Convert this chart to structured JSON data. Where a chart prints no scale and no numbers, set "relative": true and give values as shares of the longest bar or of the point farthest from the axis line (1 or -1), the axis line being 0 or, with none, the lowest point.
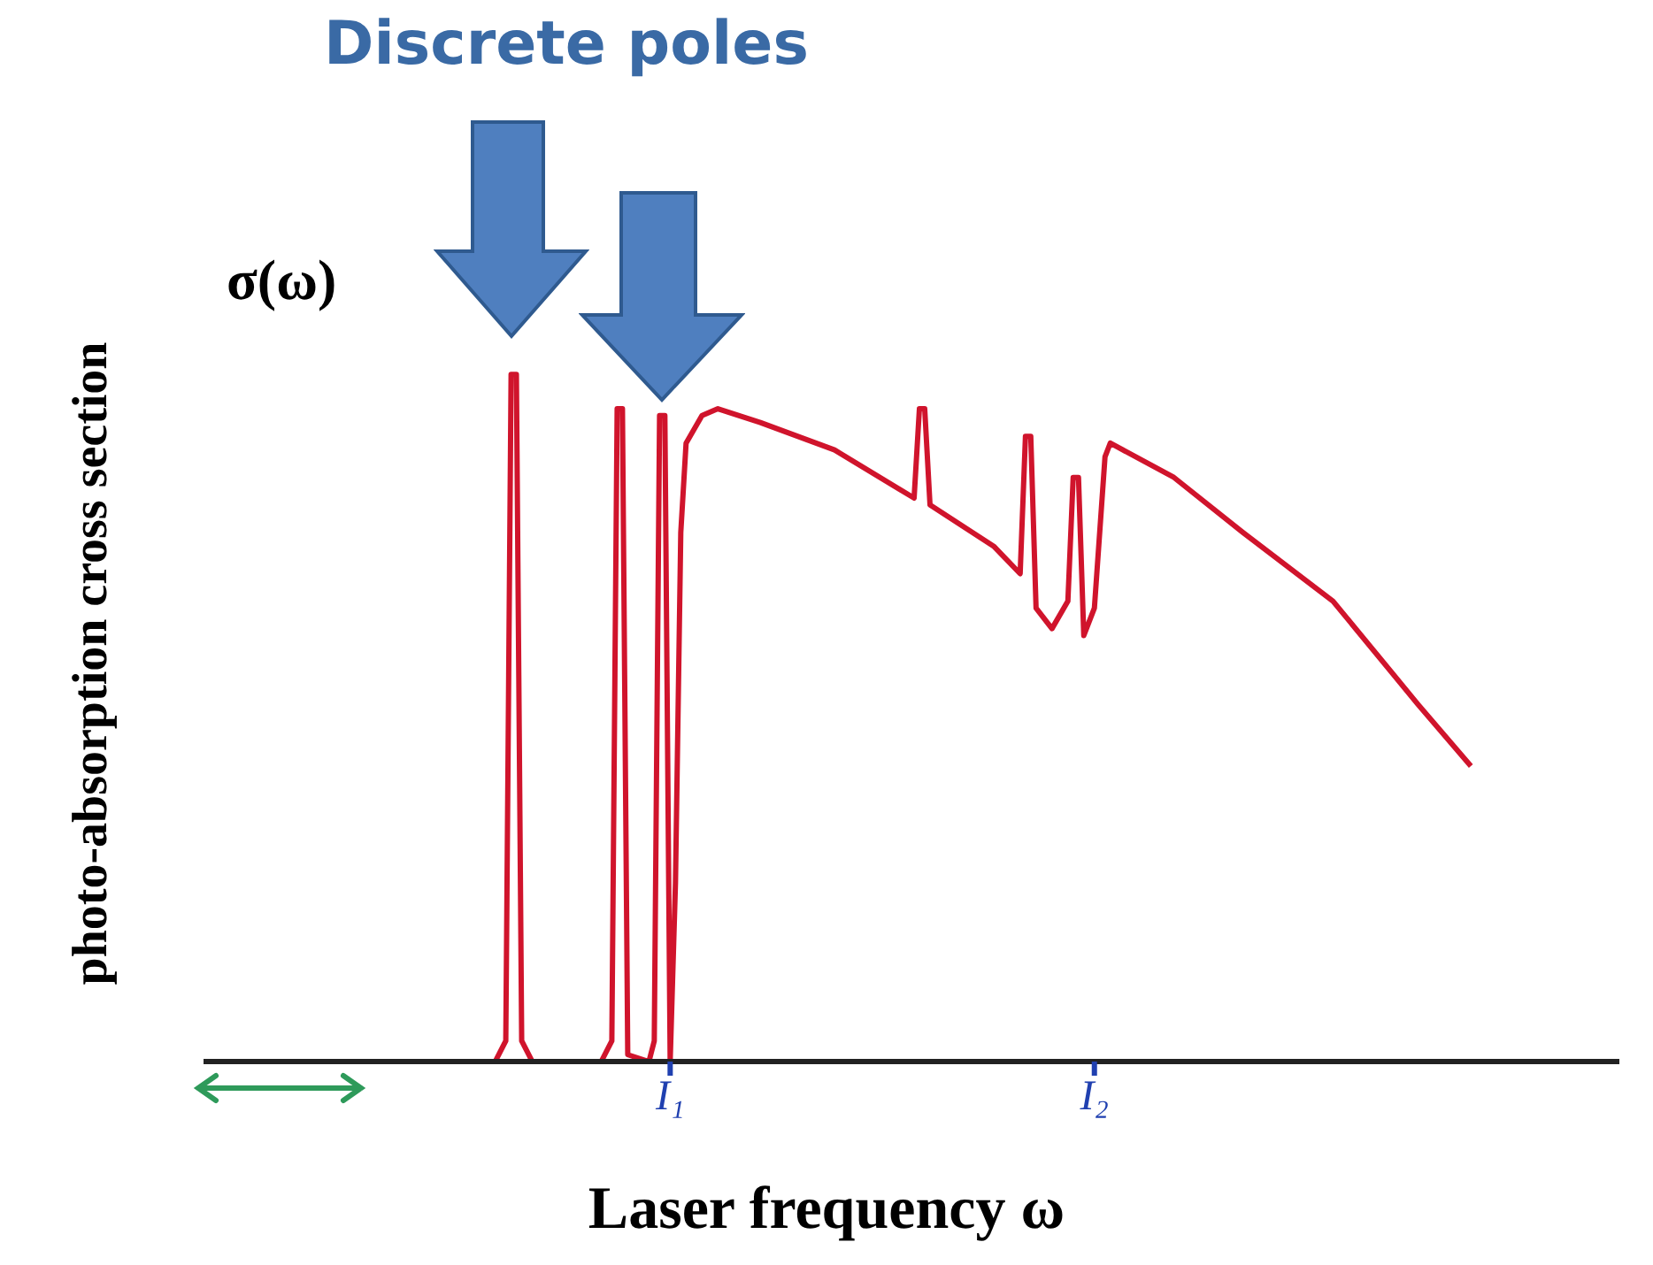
{
  "chart_data": {
    "type": "line",
    "title": "Discrete poles",
    "xlabel": "Laser frequency  ω",
    "ylabel": "photo-absorption cross section",
    "annotations": [
      "σ(ω)"
    ],
    "relative": true,
    "grid": false,
    "legend": false,
    "marker": "none",
    "line_style": "solid",
    "categories": [
      null,
      null,
      null,
      null,
      null,
      null,
      null,
      null,
      null,
      null,
      null,
      null,
      null,
      null,
      null,
      null,
      null,
      null,
      null,
      null,
      null,
      null,
      null,
      null,
      null,
      null,
      null,
      null,
      null,
      null,
      null,
      null,
      null,
      null,
      null,
      null,
      null,
      null,
      null,
      null,
      null,
      null,
      null,
      null,
      null,
      null,
      null,
      null,
      null,
      null,
      null,
      null,
      null,
      null,
      null,
      null,
      null,
      null,
      null,
      null,
      null,
      null,
      null,
      null,
      null,
      null,
      null,
      null,
      null,
      null,
      null,
      null,
      null,
      null,
      null,
      null,
      null,
      null,
      null,
      null,
      null,
      null,
      null,
      null,
      null,
      null,
      null,
      null,
      "I₁",
      null,
      null,
      null,
      null,
      null,
      null,
      null,
      null,
      null,
      null,
      null,
      null,
      null,
      null,
      null,
      null,
      null,
      null,
      null,
      null,
      null,
      null,
      null,
      null,
      null,
      null,
      null,
      null,
      null,
      null,
      null,
      null,
      null,
      null,
      null,
      null,
      null,
      null,
      null,
      null,
      null,
      null,
      null,
      null,
      null,
      null,
      null,
      null,
      null,
      null,
      null,
      null,
      null,
      null,
      null,
      null,
      null,
      null,
      null,
      null,
      null,
      null,
      null,
      null,
      null,
      null,
      null,
      null,
      null,
      null,
      null,
      null,
      null,
      null,
      null,
      null,
      null,
      null,
      null,
      "I₂",
      null,
      null,
      null,
      null,
      null,
      null,
      null,
      null,
      null,
      null,
      null,
      null,
      null,
      null,
      null,
      null,
      null,
      null,
      null,
      null,
      null,
      null,
      null,
      null,
      null,
      null,
      null,
      null,
      null,
      null,
      null,
      null,
      null,
      null,
      null,
      null,
      null,
      null,
      null,
      null,
      null,
      null,
      null,
      null,
      null,
      null,
      null,
      null,
      null,
      null,
      null,
      null,
      null,
      null,
      null,
      null,
      null,
      null,
      null,
      null,
      null,
      null,
      null,
      null,
      null,
      null,
      null,
      null,
      null,
      null,
      null,
      null,
      null,
      null,
      null,
      null,
      null,
      null,
      null,
      null,
      null,
      null,
      null,
      null,
      null,
      null,
      null,
      null,
      null,
      null,
      null,
      null,
      null,
      null,
      null,
      null,
      null,
      null,
      null
    ],
    "series": [
      {
        "color": "#d0142c",
        "values": [
          0,
          null,
          null,
          null,
          null,
          null,
          null,
          null,
          null,
          null,
          null,
          null,
          null,
          null,
          null,
          null,
          null,
          null,
          null,
          null,
          null,
          null,
          null,
          null,
          null,
          null,
          null,
          null,
          null,
          null,
          null,
          null,
          null,
          null,
          null,
          null,
          null,
          null,
          null,
          null,
          null,
          null,
          null,
          null,
          null,
          null,
          null,
          null,
          null,
          null,
          null,
          null,
          null,
          null,
          null,
          0,
          null,
          0.03,
          1,
          1,
          0.03,
          null,
          0,
          null,
          null,
          null,
          null,
          null,
          null,
          null,
          null,
          null,
          null,
          null,
          null,
          0,
          null,
          0.03,
          0.95,
          0.95,
          0.01,
          null,
          null,
          null,
          0,
          0.03,
          0.94,
          0.94,
          0,
          0.26,
          0.77,
          0.9,
          null,
          null,
          0.94,
          null,
          null,
          0.95,
          null,
          null,
          null,
          null,
          null,
          null,
          null,
          0.93,
          null,
          null,
          null,
          null,
          null,
          null,
          null,
          null,
          null,
          null,
          null,
          null,
          null,
          0.89,
          null,
          null,
          null,
          null,
          null,
          null,
          null,
          null,
          null,
          null,
          null,
          null,
          null,
          null,
          0.82,
          0.95,
          0.95,
          0.81,
          null,
          null,
          null,
          null,
          null,
          null,
          null,
          null,
          null,
          null,
          null,
          0.75,
          null,
          null,
          null,
          null,
          0.71,
          0.91,
          0.91,
          0.66,
          null,
          null,
          0.63,
          null,
          null,
          0.67,
          0.85,
          0.85,
          0.62,
          null,
          0.66,
          null,
          0.88,
          0.9,
          null,
          null,
          null,
          null,
          null,
          null,
          null,
          null,
          null,
          null,
          null,
          0.85,
          null,
          null,
          null,
          null,
          null,
          null,
          null,
          null,
          null,
          null,
          null,
          null,
          0.77,
          null,
          null,
          null,
          null,
          null,
          null,
          null,
          null,
          null,
          null,
          null,
          null,
          null,
          null,
          null,
          null,
          0.67,
          null,
          null,
          null,
          null,
          null,
          null,
          null,
          null,
          null,
          null,
          null,
          null,
          null,
          null,
          null,
          0.52,
          null,
          null,
          null,
          null,
          null,
          null,
          null,
          null,
          null,
          0.43,
          null,
          null,
          null,
          null,
          null,
          null,
          null,
          null,
          null,
          null,
          null,
          null,
          null,
          null,
          null,
          null,
          null,
          null,
          null,
          null,
          null,
          null,
          null,
          null,
          null,
          null,
          null,
          null
        ]
      }
    ]
  }
}
